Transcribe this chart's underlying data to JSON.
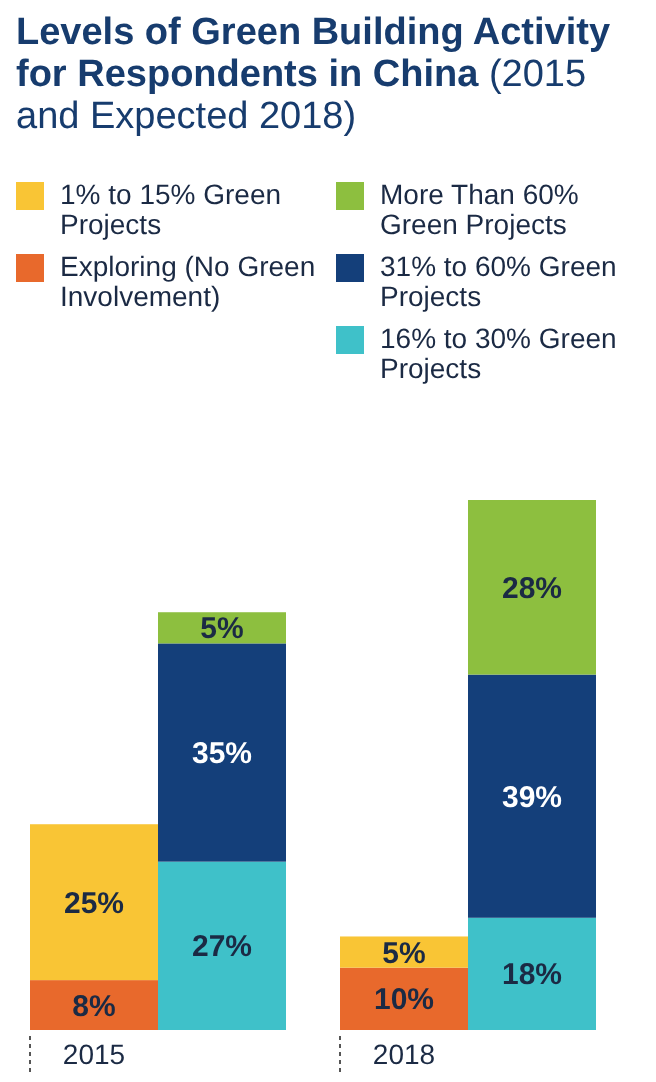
{
  "chart_data": {
    "type": "bar",
    "title": "Levels of Green Building Activity for Respondents in China",
    "subtitle": "(2015 and Expected 2018)",
    "stacked": true,
    "legend": "top",
    "categories": [
      "2015",
      null,
      "2018",
      null
    ],
    "series": [
      {
        "name": "Exploring (No Green Involvement)",
        "color": "#e8692c",
        "values": [
          8,
          null,
          10,
          null
        ],
        "value_labels": [
          "8%",
          null,
          "10%",
          null
        ]
      },
      {
        "name": "1% to 15% Green Projects",
        "color": "#f9c535",
        "values": [
          25,
          null,
          5,
          null
        ],
        "value_labels": [
          "25%",
          null,
          "5%",
          null
        ]
      },
      {
        "name": "16% to 30% Green Projects",
        "color": "#3fc1c9",
        "values": [
          null,
          27,
          null,
          18
        ],
        "value_labels": [
          null,
          "27%",
          null,
          "18%"
        ]
      },
      {
        "name": "31% to 60% Green Projects",
        "color": "#143f7a",
        "values": [
          null,
          35,
          null,
          39
        ],
        "value_labels": [
          null,
          "35%",
          null,
          "39%"
        ]
      },
      {
        "name": "More Than 60% Green Projects",
        "color": "#8dbf3f",
        "values": [
          null,
          5,
          null,
          28
        ],
        "value_labels": [
          null,
          "5%",
          null,
          "28%"
        ]
      }
    ]
  }
}
